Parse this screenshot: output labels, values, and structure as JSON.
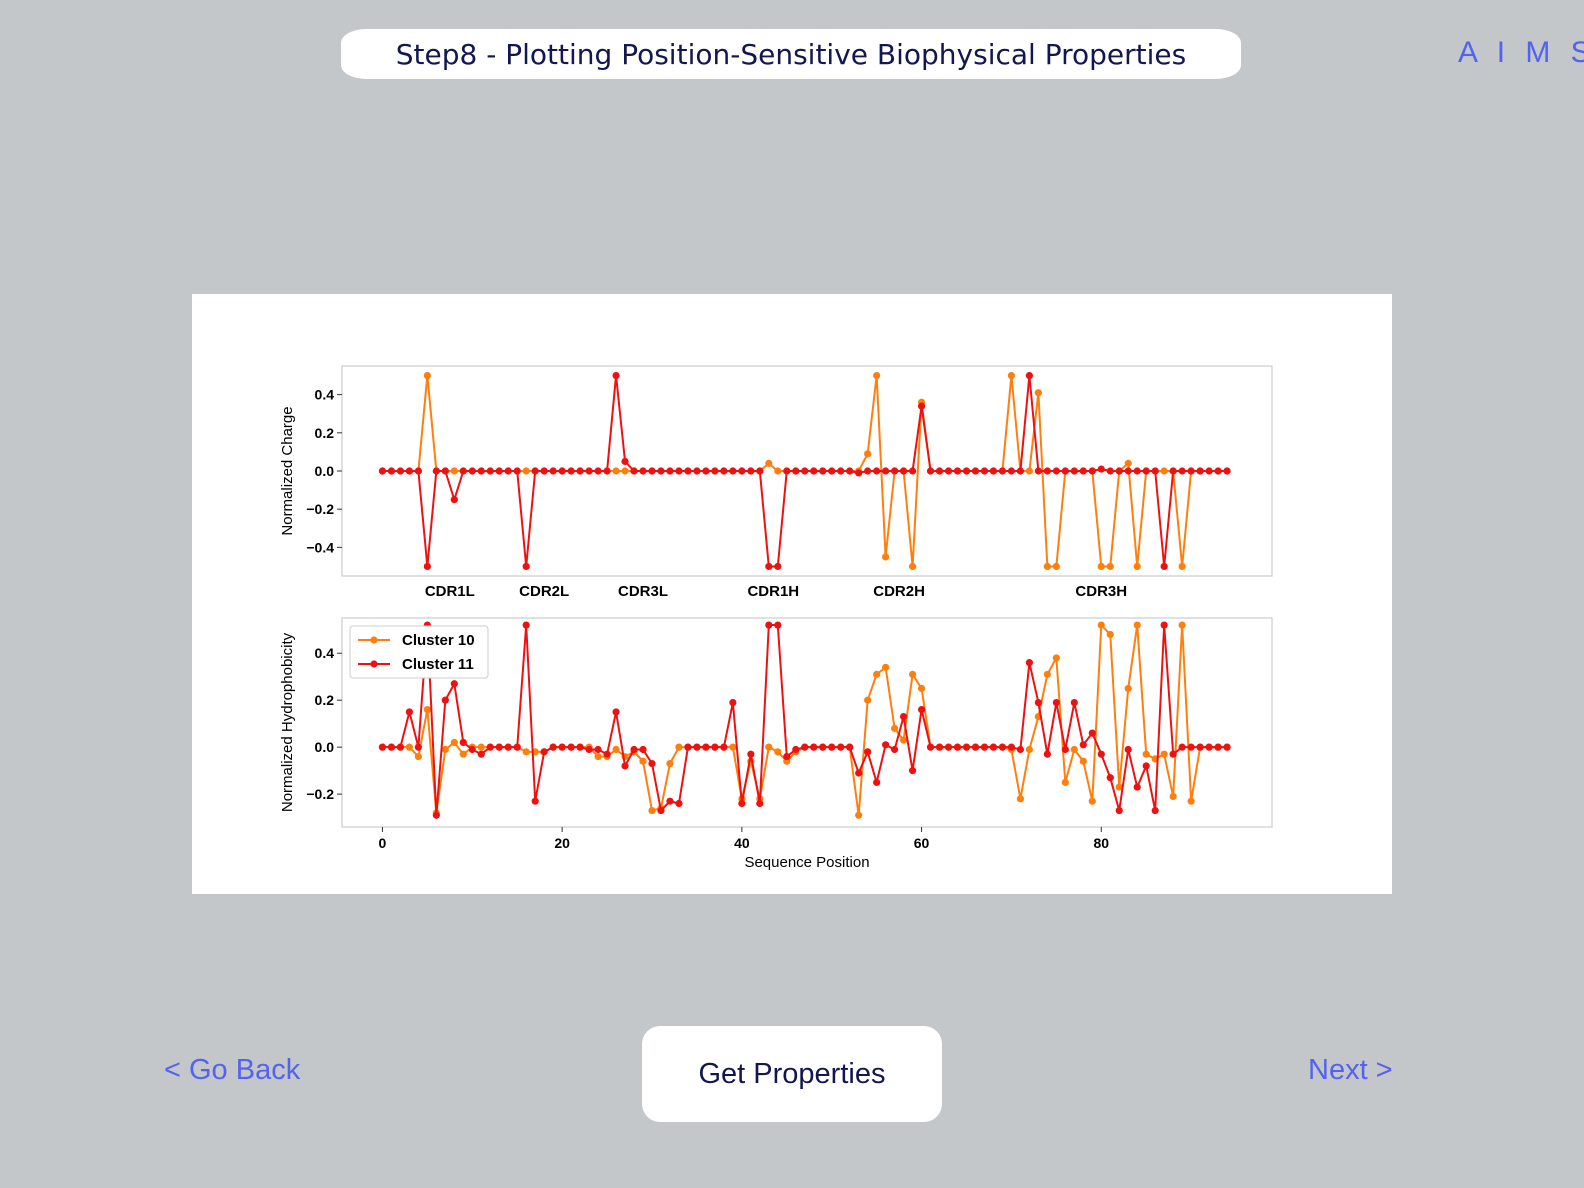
{
  "header": {
    "title": "Step8 - Plotting Position-Sensitive Biophysical Properties",
    "brand": "A I M S"
  },
  "navigation": {
    "back_label": "< Go Back",
    "next_label": "Next >",
    "action_label": "Get Properties"
  },
  "colors": {
    "background": "#c3c7ca",
    "accent": "#5462f0",
    "title_text": "#13174f",
    "cluster10": "#ff7f0e",
    "cluster11": "#ee1111"
  },
  "chart_data": [
    {
      "type": "line",
      "ylabel": "Normalized Charge",
      "xlim": [
        -4.5,
        99
      ],
      "ylim": [
        -0.55,
        0.55
      ],
      "yticks": [
        -0.4,
        -0.2,
        0.0,
        0.2,
        0.4
      ],
      "ytick_labels": [
        "−0.4",
        "−0.2",
        "0.0",
        "0.2",
        "0.4"
      ],
      "grid": false,
      "annotations": [
        {
          "text": "CDR1L",
          "x": 7.5
        },
        {
          "text": "CDR2L",
          "x": 18
        },
        {
          "text": "CDR3L",
          "x": 29
        },
        {
          "text": "CDR1H",
          "x": 43.5
        },
        {
          "text": "CDR2H",
          "x": 57.5
        },
        {
          "text": "CDR3H",
          "x": 80
        }
      ],
      "series": [
        {
          "name": "Cluster 10",
          "color": "#ff7f0e",
          "x": [
            0,
            1,
            2,
            3,
            4,
            5,
            6,
            7,
            8,
            9,
            10,
            11,
            12,
            13,
            14,
            15,
            16,
            17,
            18,
            19,
            20,
            21,
            22,
            23,
            24,
            25,
            26,
            27,
            28,
            29,
            30,
            31,
            32,
            33,
            34,
            35,
            36,
            37,
            38,
            39,
            40,
            41,
            42,
            43,
            44,
            45,
            46,
            47,
            48,
            49,
            50,
            51,
            52,
            53,
            54,
            55,
            56,
            57,
            58,
            59,
            60,
            61,
            62,
            63,
            64,
            65,
            66,
            67,
            68,
            69,
            70,
            71,
            72,
            73,
            74,
            75,
            76,
            77,
            78,
            79,
            80,
            81,
            82,
            83,
            84,
            85,
            86,
            87,
            88,
            89,
            90,
            91,
            92,
            93,
            94
          ],
          "values": [
            0,
            0,
            0,
            0,
            0,
            0.5,
            0,
            0,
            0,
            0,
            0,
            0,
            0,
            0,
            0,
            0,
            0,
            0,
            0,
            0,
            0,
            0,
            0,
            0,
            0,
            0,
            0,
            0,
            0,
            0,
            0,
            0,
            0,
            0,
            0,
            0,
            0,
            0,
            0,
            0,
            0,
            0,
            0,
            0.04,
            0,
            0,
            0,
            0,
            0,
            0,
            0,
            0,
            0,
            0,
            0.09,
            0.5,
            -0.45,
            0,
            0,
            -0.5,
            0.36,
            0,
            0,
            0,
            0,
            0,
            0,
            0,
            0,
            0,
            0.5,
            0,
            0,
            0.41,
            -0.5,
            -0.5,
            0,
            0,
            0,
            0,
            -0.5,
            -0.5,
            0,
            0.04,
            -0.5,
            0,
            0,
            0,
            0,
            -0.5,
            0,
            0,
            0,
            0,
            0
          ]
        },
        {
          "name": "Cluster 11",
          "color": "#ee1111",
          "x": [
            0,
            1,
            2,
            3,
            4,
            5,
            6,
            7,
            8,
            9,
            10,
            11,
            12,
            13,
            14,
            15,
            16,
            17,
            18,
            19,
            20,
            21,
            22,
            23,
            24,
            25,
            26,
            27,
            28,
            29,
            30,
            31,
            32,
            33,
            34,
            35,
            36,
            37,
            38,
            39,
            40,
            41,
            42,
            43,
            44,
            45,
            46,
            47,
            48,
            49,
            50,
            51,
            52,
            53,
            54,
            55,
            56,
            57,
            58,
            59,
            60,
            61,
            62,
            63,
            64,
            65,
            66,
            67,
            68,
            69,
            70,
            71,
            72,
            73,
            74,
            75,
            76,
            77,
            78,
            79,
            80,
            81,
            82,
            83,
            84,
            85,
            86,
            87,
            88,
            89,
            90,
            91,
            92,
            93,
            94
          ],
          "values": [
            0,
            0,
            0,
            0,
            0,
            -0.5,
            0,
            0,
            -0.15,
            0,
            0,
            0,
            0,
            0,
            0,
            0,
            -0.5,
            0,
            0,
            0,
            0,
            0,
            0,
            0,
            0,
            0,
            0.5,
            0.05,
            0,
            0,
            0,
            0,
            0,
            0,
            0,
            0,
            0,
            0,
            0,
            0,
            0,
            0,
            0,
            -0.5,
            -0.5,
            0,
            0,
            0,
            0,
            0,
            0,
            0,
            0,
            -0.01,
            0,
            0,
            0,
            0,
            0,
            0,
            0.34,
            0,
            0,
            0,
            0,
            0,
            0,
            0,
            0,
            0,
            0,
            0,
            0.5,
            0,
            0,
            0,
            0,
            0,
            0,
            0,
            0.01,
            0,
            0,
            0,
            0,
            0,
            0,
            -0.5,
            0,
            0,
            0,
            0,
            0,
            0,
            0
          ]
        }
      ]
    },
    {
      "type": "line",
      "xlabel": "Sequence Position",
      "ylabel": "Normalized Hydrophobicity",
      "xlim": [
        -4.5,
        99
      ],
      "ylim": [
        -0.34,
        0.55
      ],
      "xticks": [
        0,
        20,
        40,
        60,
        80
      ],
      "yticks": [
        -0.2,
        0.0,
        0.2,
        0.4
      ],
      "ytick_labels": [
        "−0.2",
        "0.0",
        "0.2",
        "0.4"
      ],
      "grid": false,
      "legend": "top-left",
      "series": [
        {
          "name": "Cluster 10",
          "color": "#ff7f0e",
          "x": [
            0,
            1,
            2,
            3,
            4,
            5,
            6,
            7,
            8,
            9,
            10,
            11,
            12,
            13,
            14,
            15,
            16,
            17,
            18,
            19,
            20,
            21,
            22,
            23,
            24,
            25,
            26,
            27,
            28,
            29,
            30,
            31,
            32,
            33,
            34,
            35,
            36,
            37,
            38,
            39,
            40,
            41,
            42,
            43,
            44,
            45,
            46,
            47,
            48,
            49,
            50,
            51,
            52,
            53,
            54,
            55,
            56,
            57,
            58,
            59,
            60,
            61,
            62,
            63,
            64,
            65,
            66,
            67,
            68,
            69,
            70,
            71,
            72,
            73,
            74,
            75,
            76,
            77,
            78,
            79,
            80,
            81,
            82,
            83,
            84,
            85,
            86,
            87,
            88,
            89,
            90,
            91,
            92,
            93,
            94
          ],
          "values": [
            0,
            0,
            0,
            0,
            -0.04,
            0.16,
            -0.28,
            -0.01,
            0.02,
            -0.03,
            0,
            0,
            0,
            0,
            0,
            0,
            -0.02,
            -0.02,
            -0.02,
            0,
            0,
            0,
            0,
            0,
            -0.04,
            -0.04,
            -0.01,
            -0.04,
            -0.02,
            -0.06,
            -0.27,
            -0.26,
            -0.07,
            0,
            0,
            0,
            0,
            0,
            0,
            0,
            -0.22,
            -0.06,
            -0.22,
            0,
            -0.02,
            -0.06,
            -0.02,
            0,
            0,
            0,
            0,
            0,
            0,
            -0.29,
            0.2,
            0.31,
            0.34,
            0.08,
            0.03,
            0.31,
            0.25,
            0,
            0,
            0,
            0,
            0,
            0,
            0,
            0,
            0,
            -0.01,
            -0.22,
            -0.01,
            0.13,
            0.31,
            0.38,
            -0.15,
            -0.01,
            -0.06,
            -0.23,
            0.52,
            0.48,
            -0.17,
            0.25,
            0.52,
            -0.03,
            -0.05,
            -0.03,
            -0.21,
            0.52,
            -0.23,
            0,
            0,
            0,
            0
          ]
        },
        {
          "name": "Cluster 11",
          "color": "#ee1111",
          "x": [
            0,
            1,
            2,
            3,
            4,
            5,
            6,
            7,
            8,
            9,
            10,
            11,
            12,
            13,
            14,
            15,
            16,
            17,
            18,
            19,
            20,
            21,
            22,
            23,
            24,
            25,
            26,
            27,
            28,
            29,
            30,
            31,
            32,
            33,
            34,
            35,
            36,
            37,
            38,
            39,
            40,
            41,
            42,
            43,
            44,
            45,
            46,
            47,
            48,
            49,
            50,
            51,
            52,
            53,
            54,
            55,
            56,
            57,
            58,
            59,
            60,
            61,
            62,
            63,
            64,
            65,
            66,
            67,
            68,
            69,
            70,
            71,
            72,
            73,
            74,
            75,
            76,
            77,
            78,
            79,
            80,
            81,
            82,
            83,
            84,
            85,
            86,
            87,
            88,
            89,
            90,
            91,
            92,
            93,
            94
          ],
          "values": [
            0,
            0,
            0,
            0.15,
            0,
            0.52,
            -0.29,
            0.2,
            0.27,
            0.02,
            -0.01,
            -0.03,
            0,
            0,
            0,
            0,
            0.52,
            -0.23,
            -0.02,
            0,
            0,
            0,
            0,
            -0.01,
            -0.01,
            -0.03,
            0.15,
            -0.08,
            -0.01,
            -0.01,
            -0.07,
            -0.27,
            -0.23,
            -0.24,
            0,
            0,
            0,
            0,
            0,
            0.19,
            -0.24,
            -0.03,
            -0.24,
            0.52,
            0.52,
            -0.04,
            -0.01,
            0,
            0,
            0,
            0,
            0,
            0,
            -0.11,
            -0.02,
            -0.15,
            0.01,
            -0.01,
            0.13,
            -0.1,
            0.16,
            0,
            0,
            0,
            0,
            0,
            0,
            0,
            0,
            0,
            0,
            -0.01,
            0.36,
            0.19,
            -0.03,
            0.19,
            -0.01,
            0.19,
            0.01,
            0.06,
            -0.03,
            -0.13,
            -0.27,
            -0.01,
            -0.17,
            -0.08,
            -0.27,
            0.52,
            -0.03,
            0,
            0,
            0,
            0,
            0,
            0
          ]
        }
      ]
    }
  ]
}
